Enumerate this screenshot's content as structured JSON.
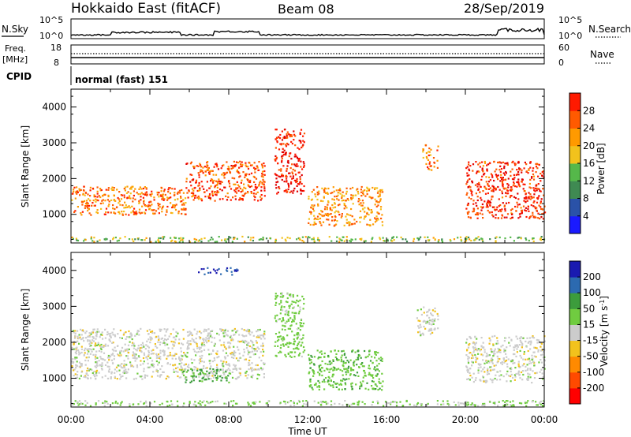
{
  "header": {
    "station": "Hokkaido East (fitACF)",
    "beam": "Beam 08",
    "date": "28/Sep/2019"
  },
  "summary_panels": {
    "nsky": {
      "label": "N.Sky",
      "tick_top": "10^5",
      "tick_bottom": "10^0",
      "right_label": "N.Search",
      "right_tick_top": "10^5",
      "right_tick_bottom": "10^0"
    },
    "freq": {
      "label_line1": "Freq.",
      "label_line2": "[MHz]",
      "tick_top": "18",
      "tick_bottom": "8",
      "right_label": "Nave",
      "right_tick_top": "60",
      "right_tick_bottom": "0"
    },
    "cpid": {
      "label": "CPID",
      "mode_text": "normal (fast) 151"
    }
  },
  "colors": {
    "power_scale": [
      "#1a1aff",
      "#2a52a8",
      "#3f8a52",
      "#55b84a",
      "#f2c21c",
      "#ff9a00",
      "#ff5a00",
      "#ff1a00",
      "#e00000"
    ],
    "velocity_scale": [
      "#ff0000",
      "#ff4a00",
      "#ff8a00",
      "#f2c21c",
      "#cccccc",
      "#70cc40",
      "#3c9c3c",
      "#2c6ab0",
      "#1a1ab0"
    ]
  },
  "chart_data": [
    {
      "type": "heatmap",
      "ylabel": "Slant Range [km]",
      "ylim": [
        200,
        4500
      ],
      "yticks": [
        1000,
        2000,
        3000,
        4000
      ],
      "xlim": [
        0,
        24
      ],
      "colorbar": {
        "label": "Power [dB]",
        "range": [
          0,
          32
        ],
        "ticks": [
          "4",
          "8",
          "12",
          "16",
          "20",
          "24",
          "28"
        ]
      },
      "echo_regions": [
        {
          "t_start": 0.0,
          "t_end": 5.8,
          "range_min": 1000,
          "range_max": 1800,
          "power": 22
        },
        {
          "t_start": 5.8,
          "t_end": 9.8,
          "range_min": 1400,
          "range_max": 2500,
          "power": 24
        },
        {
          "t_start": 10.3,
          "t_end": 11.8,
          "range_min": 1600,
          "range_max": 3400,
          "power": 28
        },
        {
          "t_start": 12.0,
          "t_end": 15.8,
          "range_min": 700,
          "range_max": 1800,
          "power": 20
        },
        {
          "t_start": 17.8,
          "t_end": 18.6,
          "range_min": 2200,
          "range_max": 3000,
          "power": 22
        },
        {
          "t_start": 20.0,
          "t_end": 24.0,
          "range_min": 900,
          "range_max": 2500,
          "power": 26
        },
        {
          "t_start": 0.0,
          "t_end": 24.0,
          "range_min": 250,
          "range_max": 400,
          "power": 14
        }
      ]
    },
    {
      "type": "heatmap",
      "ylabel": "Slant Range [km]",
      "xlabel": "Time UT",
      "ylim": [
        200,
        4500
      ],
      "yticks": [
        1000,
        2000,
        3000,
        4000
      ],
      "xlim": [
        0,
        24
      ],
      "xticks": [
        "00:00",
        "04:00",
        "08:00",
        "12:00",
        "16:00",
        "20:00",
        "00:00"
      ],
      "colorbar": {
        "label": "Velocity [m s^-1]",
        "range": [
          -250,
          250
        ],
        "ticks": [
          "200",
          "100",
          "50",
          "15",
          "-15",
          "-50",
          "-100",
          "-200"
        ]
      },
      "echo_regions": [
        {
          "t_start": 0.0,
          "t_end": 9.8,
          "range_min": 1000,
          "range_max": 2400,
          "velocity": 0
        },
        {
          "t_start": 6.4,
          "t_end": 8.5,
          "range_min": 3900,
          "range_max": 4100,
          "velocity": 200
        },
        {
          "t_start": 5.6,
          "t_end": 8.0,
          "range_min": 900,
          "range_max": 1300,
          "velocity": 60
        },
        {
          "t_start": 10.3,
          "t_end": 11.8,
          "range_min": 1600,
          "range_max": 3400,
          "velocity": 30
        },
        {
          "t_start": 12.0,
          "t_end": 15.8,
          "range_min": 700,
          "range_max": 1800,
          "velocity": 40
        },
        {
          "t_start": 17.5,
          "t_end": 18.6,
          "range_min": 2200,
          "range_max": 3000,
          "velocity": 0
        },
        {
          "t_start": 20.0,
          "t_end": 24.0,
          "range_min": 900,
          "range_max": 2200,
          "velocity": 0
        },
        {
          "t_start": 0.0,
          "t_end": 24.0,
          "range_min": 250,
          "range_max": 400,
          "velocity": 20
        }
      ]
    }
  ],
  "time_axis_label": "Time UT"
}
